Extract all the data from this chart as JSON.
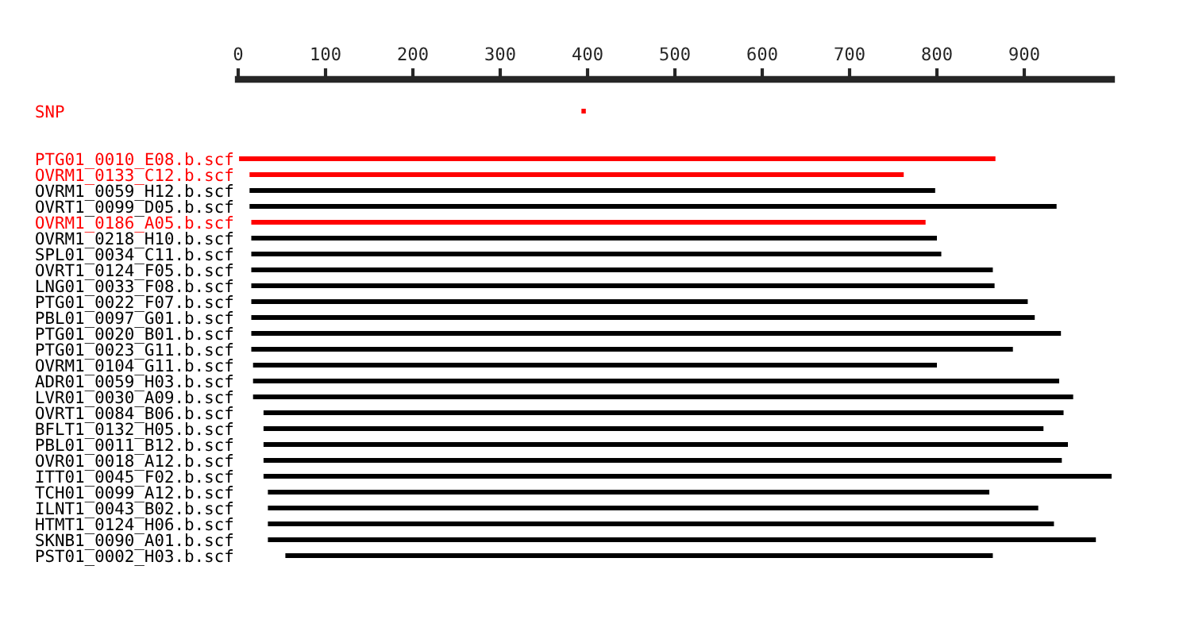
{
  "chart_data": {
    "type": "bar",
    "orientation": "horizontal",
    "legend": false,
    "grid": false,
    "categories": [
      "SNP",
      null,
      null,
      "PTG01_0010_E08.b.scf",
      "OVRM1_0133_C12.b.scf",
      "OVRM1_0059_H12.b.scf",
      "OVRT1_0099_D05.b.scf",
      "OVRM1_0186_A05.b.scf",
      "OVRM1_0218_H10.b.scf",
      "SPL01_0034_C11.b.scf",
      "OVRT1_0124_F05.b.scf",
      "LNG01_0033_F08.b.scf",
      "PTG01_0022_F07.b.scf",
      "PBL01_0097_G01.b.scf",
      "PTG01_0020_B01.b.scf",
      "PTG01_0023_G11.b.scf",
      "OVRM1_0104_G11.b.scf",
      "ADR01_0059_H03.b.scf",
      "LVR01_0030_A09.b.scf",
      "OVRT1_0084_B06.b.scf",
      "BFLT1_0132_H05.b.scf",
      "PBL01_0011_B12.b.scf",
      "OVR01_0018_A12.b.scf",
      "ITT01_0045_F02.b.scf",
      "TCH01_0099_A12.b.scf",
      "ILNT1_0043_B02.b.scf",
      "HTMT1_0124_H06.b.scf",
      "SKNB1_0090_A01.b.scf",
      "PST01_0002_H03.b.scf"
    ],
    "base": [
      393,
      null,
      null,
      1,
      13,
      13,
      13,
      15,
      15,
      15,
      15,
      15,
      15,
      15,
      15,
      15,
      17,
      17,
      17,
      29,
      29,
      29,
      29,
      29,
      34,
      34,
      34,
      34,
      54
    ],
    "values": [
      5,
      null,
      null,
      866,
      749,
      785,
      924,
      772,
      785,
      790,
      849,
      851,
      889,
      897,
      927,
      872,
      783,
      923,
      939,
      916,
      893,
      921,
      914,
      971,
      826,
      882,
      900,
      948,
      810
    ],
    "colors": [
      "#ff0000",
      null,
      null,
      "#ff0000",
      "#ff0000",
      "#000000",
      "#000000",
      "#ff0000",
      "#000000",
      "#000000",
      "#000000",
      "#000000",
      "#000000",
      "#000000",
      "#000000",
      "#000000",
      "#000000",
      "#000000",
      "#000000",
      "#000000",
      "#000000",
      "#000000",
      "#000000",
      "#000000",
      "#000000",
      "#000000",
      "#000000",
      "#000000",
      "#000000"
    ],
    "xlim": [
      0,
      1000
    ],
    "xticks": [
      0,
      100,
      200,
      300,
      400,
      500,
      600,
      700,
      800,
      900
    ]
  }
}
